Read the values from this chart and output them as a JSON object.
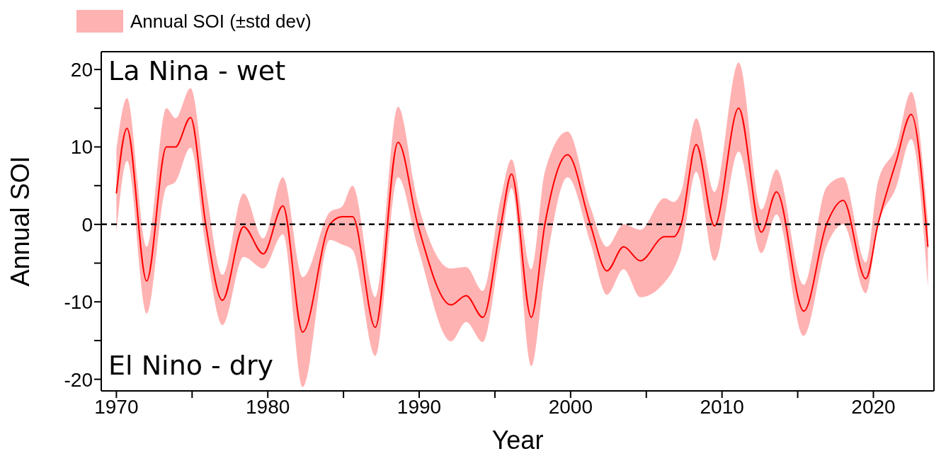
{
  "chart_data": {
    "type": "line",
    "xlabel": "Year",
    "ylabel": "Annual SOI",
    "x": [
      1970,
      1970.7,
      1972.0,
      1973.3,
      1973.9,
      1974.9,
      1975.9,
      1977.0,
      1978.4,
      1979.7,
      1981.0,
      1982.3,
      1984.1,
      1984.9,
      1985.6,
      1987.1,
      1988.6,
      1989.9,
      1992.1,
      1993.1,
      1994.2,
      1995.4,
      1996.1,
      1997.4,
      1998.3,
      1999.8,
      2001.3,
      2002.4,
      2003.5,
      2004.6,
      2006.2,
      2006.8,
      2007.3,
      2008.3,
      2009.5,
      2011.1,
      2012.6,
      2013.6,
      2015.4,
      2016.9,
      2018.0,
      2019.5,
      2020.3,
      2021.5,
      2022.5,
      2023.6
    ],
    "series": [
      {
        "name": "Annual SOI (±std dev)",
        "color": "#ff0000",
        "values": [
          4.0,
          12.4,
          -7.3,
          10.0,
          10.0,
          13.8,
          0,
          -9.8,
          -0.3,
          -3.8,
          2.4,
          -13.9,
          0,
          1.0,
          1.0,
          -13.3,
          10.6,
          0,
          -10.4,
          -9.2,
          -12.0,
          0,
          6.5,
          -12.0,
          0,
          9.0,
          0,
          -6.0,
          -2.9,
          -4.7,
          -1.6,
          -1.6,
          0,
          10.3,
          -0.2,
          15.0,
          -1.0,
          4.2,
          -11.2,
          0,
          3.1,
          -7.0,
          0,
          8.1,
          14.2,
          -2.9
        ],
        "lower": [
          -1.1,
          8.2,
          -11.5,
          4.8,
          5.5,
          9.9,
          -2.9,
          -13.0,
          -4.2,
          -5.7,
          -1.3,
          -21.0,
          -2.0,
          -2.6,
          -3.3,
          -17.0,
          6.1,
          -2.9,
          -15.1,
          -12.6,
          -15.2,
          -2.6,
          4.7,
          -18.3,
          -6.2,
          6.1,
          -2.3,
          -9.1,
          -5.8,
          -9.4,
          -7.5,
          -5.8,
          -3.3,
          6.8,
          -4.7,
          9.4,
          -3.7,
          1.3,
          -14.4,
          -2.9,
          0.0,
          -8.9,
          -0.3,
          4.8,
          11.0,
          -8.1
        ],
        "upper": [
          9.7,
          16.3,
          -2.9,
          15.0,
          13.7,
          17.6,
          4.8,
          -6.5,
          4.0,
          -1.8,
          6.1,
          -6.8,
          1.6,
          2.3,
          5.0,
          -9.4,
          15.2,
          2.9,
          -5.7,
          -5.5,
          -8.6,
          3.5,
          8.4,
          -5.8,
          6.8,
          12.0,
          2.3,
          -2.9,
          0.0,
          -0.7,
          3.4,
          2.9,
          4.2,
          13.7,
          4.2,
          20.9,
          1.9,
          7.1,
          -7.8,
          4.8,
          6.1,
          -4.9,
          5.5,
          10.0,
          17.1,
          0.3
        ]
      }
    ],
    "xlim": [
      1969,
      2024
    ],
    "xticks": [
      1970,
      {
        "value": 1975,
        "label": null
      },
      1980,
      {
        "value": 1985,
        "label": null
      },
      1990,
      {
        "value": 1995,
        "label": null
      },
      2000,
      {
        "value": 2005,
        "label": null
      },
      2010,
      {
        "value": 2015,
        "label": null
      },
      2020
    ],
    "ylim": [
      -21.5,
      22.3
    ],
    "yticks": [
      -20,
      {
        "value": -15,
        "label": null
      },
      -10,
      {
        "value": -5,
        "label": null
      },
      0,
      {
        "value": 5,
        "label": null
      },
      10,
      {
        "value": 15,
        "label": null
      },
      20
    ],
    "ref_lines": [
      {
        "axis": "y",
        "value": 0,
        "color": "#000000",
        "line_style": "dashed"
      }
    ],
    "annotations": [
      "La Nina - wet",
      "El Nino - dry"
    ],
    "legend": "top left",
    "marker": "none",
    "grid": false
  }
}
